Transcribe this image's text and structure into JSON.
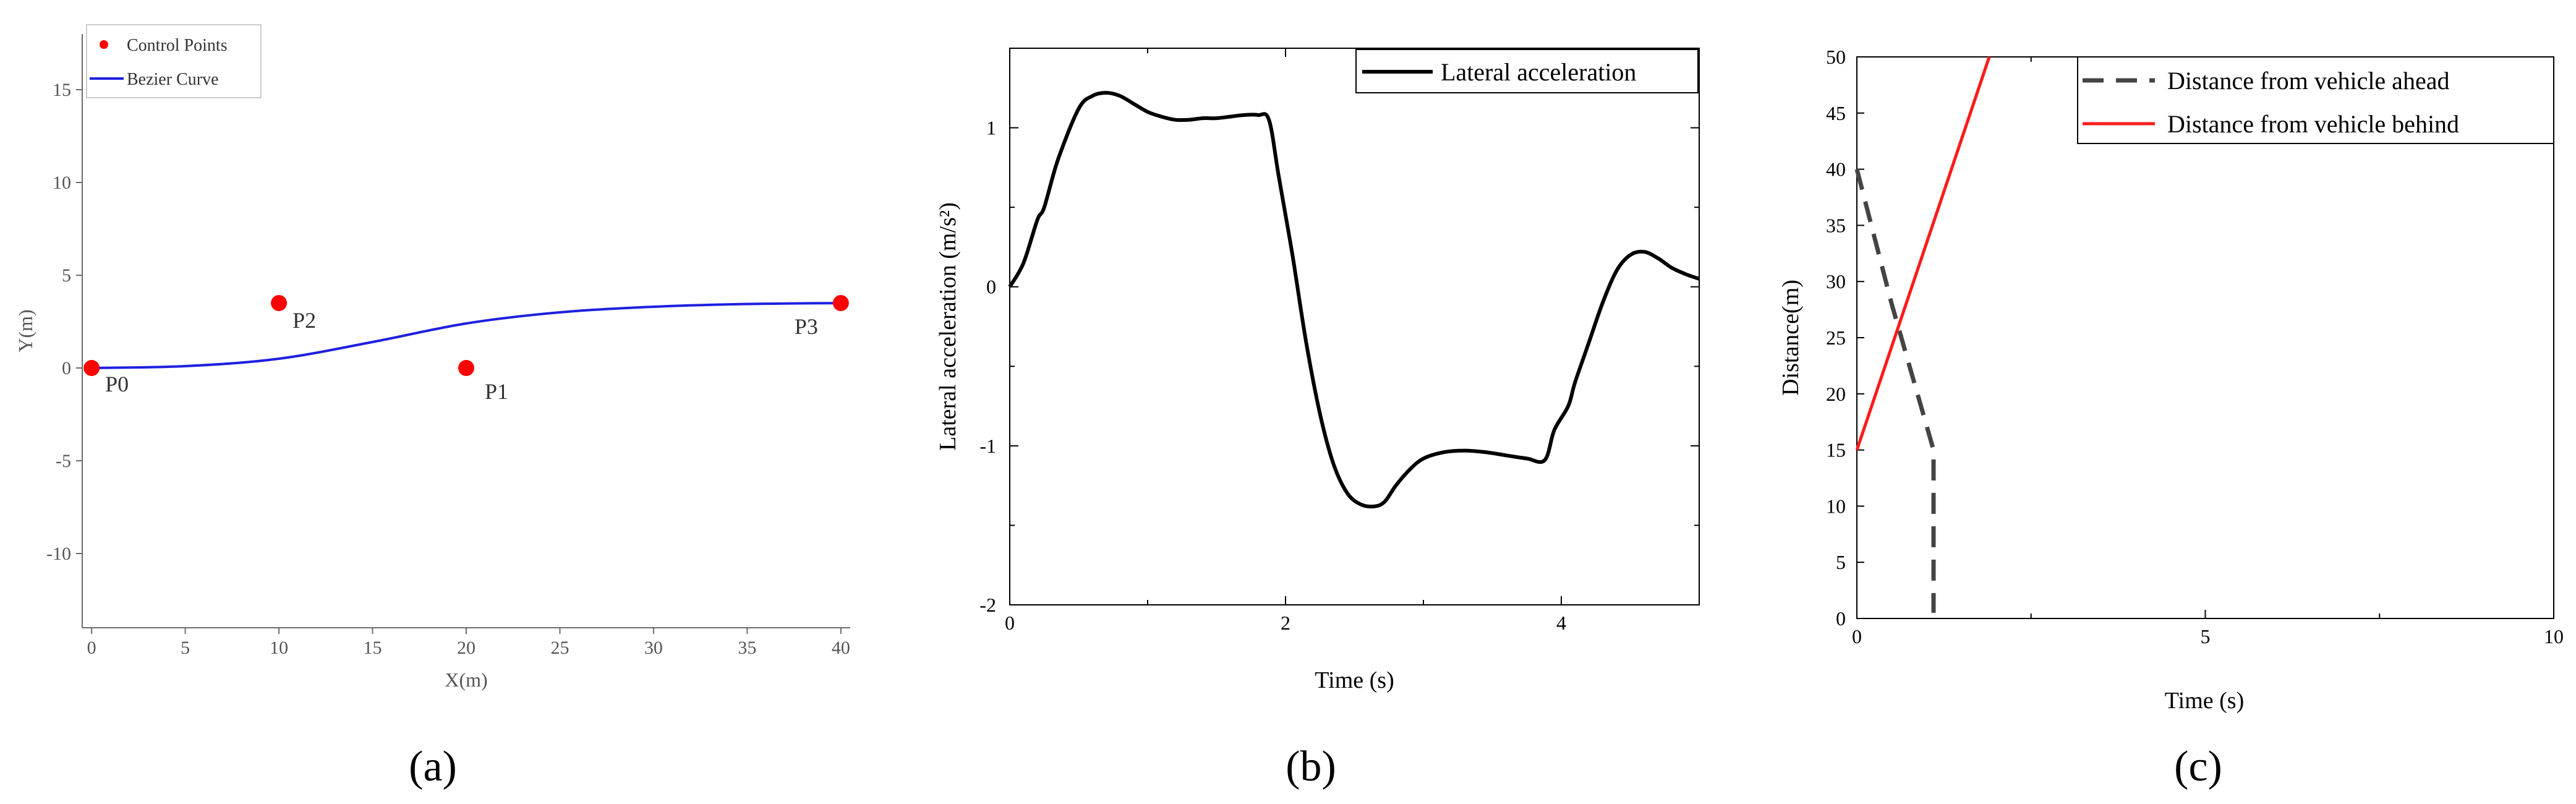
{
  "colors": {
    "axis": "#6b6b6b",
    "axis_dark": "#000000",
    "control_points": "#ff0000",
    "bezier": "#1f1fe0",
    "lateral": "#000000",
    "ahead": "#444444",
    "behind": "#ff1a1a"
  },
  "chart_data": [
    {
      "id": "a",
      "type": "scatter",
      "panel_label": "(a)",
      "xlabel": "X(m)",
      "ylabel": "Y(m)",
      "xlim": [
        -0.5,
        40.5
      ],
      "ylim": [
        -14,
        18
      ],
      "xticks": [
        0,
        5,
        10,
        15,
        20,
        25,
        30,
        35,
        40
      ],
      "yticks": [
        -10,
        -5,
        0,
        5,
        10,
        15
      ],
      "legend": {
        "position": "top-left",
        "entries": [
          {
            "label": "Control Points",
            "kind": "marker"
          },
          {
            "label": "Bezier Curve",
            "kind": "line"
          }
        ]
      },
      "control_points": [
        {
          "name": "P0",
          "x": 0,
          "y": 0
        },
        {
          "name": "P1",
          "x": 20,
          "y": 0
        },
        {
          "name": "P2",
          "x": 10,
          "y": 3.5
        },
        {
          "name": "P3",
          "x": 40,
          "y": 3.5
        }
      ],
      "series": [
        {
          "name": "Bezier Curve",
          "x": [
            0,
            5,
            10,
            15,
            20,
            25,
            30,
            35,
            40
          ],
          "y": [
            0,
            0.1,
            0.5,
            1.4,
            2.4,
            3.0,
            3.3,
            3.45,
            3.5
          ]
        }
      ]
    },
    {
      "id": "b",
      "type": "line",
      "panel_label": "(b)",
      "xlabel": "Time (s)",
      "ylabel": "Lateral acceleration (m/s²)",
      "xlim": [
        0,
        5
      ],
      "ylim": [
        -2,
        1.5
      ],
      "xticks": [
        0,
        2,
        4
      ],
      "yticks": [
        -2,
        -1,
        0,
        1
      ],
      "legend": {
        "position": "top-right",
        "entries": [
          {
            "label": "Lateral acceleration",
            "kind": "line"
          }
        ]
      },
      "series": [
        {
          "name": "Lateral acceleration",
          "x": [
            0,
            0.1,
            0.2,
            0.25,
            0.35,
            0.5,
            0.6,
            0.7,
            0.8,
            0.9,
            1.0,
            1.1,
            1.2,
            1.3,
            1.4,
            1.5,
            1.6,
            1.7,
            1.8,
            1.88,
            1.95,
            2.05,
            2.15,
            2.25,
            2.35,
            2.45,
            2.55,
            2.65,
            2.72,
            2.8,
            2.9,
            3.0,
            3.15,
            3.3,
            3.45,
            3.6,
            3.75,
            3.88,
            3.95,
            4.05,
            4.1,
            4.2,
            4.3,
            4.4,
            4.5,
            4.6,
            4.7,
            4.8,
            4.9,
            5.0
          ],
          "y": [
            0,
            0.15,
            0.42,
            0.5,
            0.8,
            1.12,
            1.2,
            1.22,
            1.2,
            1.15,
            1.1,
            1.07,
            1.05,
            1.05,
            1.06,
            1.06,
            1.07,
            1.08,
            1.08,
            1.05,
            0.7,
            0.2,
            -0.35,
            -0.8,
            -1.12,
            -1.3,
            -1.37,
            -1.38,
            -1.35,
            -1.25,
            -1.15,
            -1.08,
            -1.04,
            -1.03,
            -1.04,
            -1.06,
            -1.08,
            -1.09,
            -0.9,
            -0.75,
            -0.6,
            -0.35,
            -0.1,
            0.1,
            0.2,
            0.22,
            0.18,
            0.12,
            0.08,
            0.05
          ]
        }
      ]
    },
    {
      "id": "c",
      "type": "line",
      "panel_label": "(c)",
      "xlabel": "Time (s)",
      "ylabel": "Distance(m)",
      "xlim": [
        0,
        10
      ],
      "ylim": [
        0,
        50
      ],
      "xticks": [
        0,
        5,
        10
      ],
      "yticks": [
        0,
        5,
        10,
        15,
        20,
        25,
        30,
        35,
        40,
        45,
        50
      ],
      "legend": {
        "position": "top-right",
        "entries": [
          {
            "label": "Distance from vehicle ahead",
            "kind": "dashed"
          },
          {
            "label": "Distance from vehicle behind",
            "kind": "line"
          }
        ]
      },
      "series": [
        {
          "name": "Distance from vehicle ahead",
          "x": [
            0,
            0.5,
            1.1,
            1.1
          ],
          "y": [
            40,
            28,
            15,
            0.5
          ]
        },
        {
          "name": "Distance from vehicle behind",
          "x": [
            0,
            1.9
          ],
          "y": [
            15,
            50
          ]
        }
      ]
    }
  ]
}
